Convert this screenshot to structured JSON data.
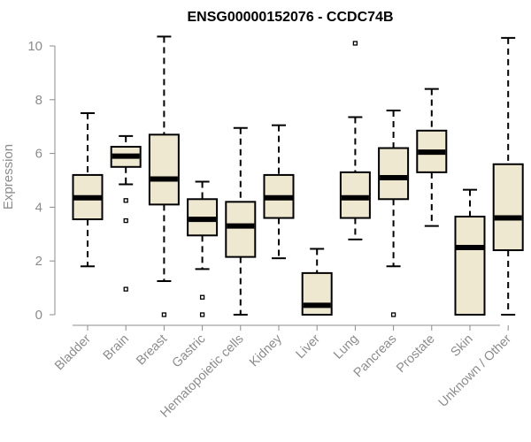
{
  "chart_data": {
    "type": "boxplot",
    "title": "ENSG00000152076 - CCDC74B",
    "xlabel": "",
    "ylabel": "Expression",
    "ylim": [
      0,
      10.3
    ],
    "yticks": [
      0,
      2,
      4,
      6,
      8,
      10
    ],
    "grid": false,
    "colors": {
      "box_fill": "#efe8d0",
      "box_stroke": "#000000",
      "axis": "#8c8c8c"
    },
    "categories": [
      "Bladder",
      "Brain",
      "Breast",
      "Gastric",
      "Hematopoietic cells",
      "Kidney",
      "Liver",
      "Lung",
      "Pancreas",
      "Prostate",
      "Skin",
      "Unknown / Other"
    ],
    "boxes": [
      {
        "category": "Bladder",
        "whisker_low": 1.8,
        "q1": 3.55,
        "median": 4.35,
        "q3": 5.2,
        "whisker_high": 7.5,
        "outliers": []
      },
      {
        "category": "Brain",
        "whisker_low": 4.85,
        "q1": 5.5,
        "median": 5.9,
        "q3": 6.25,
        "whisker_high": 6.65,
        "outliers": [
          4.25,
          3.5,
          0.95
        ]
      },
      {
        "category": "Breast",
        "whisker_low": 1.25,
        "q1": 4.1,
        "median": 5.05,
        "q3": 6.7,
        "whisker_high": 10.35,
        "outliers": [
          0.0
        ]
      },
      {
        "category": "Gastric",
        "whisker_low": 1.7,
        "q1": 2.95,
        "median": 3.55,
        "q3": 4.3,
        "whisker_high": 4.95,
        "outliers": [
          0.65,
          0.0
        ]
      },
      {
        "category": "Hematopoietic cells",
        "whisker_low": 0.0,
        "q1": 2.15,
        "median": 3.3,
        "q3": 4.2,
        "whisker_high": 6.95,
        "outliers": []
      },
      {
        "category": "Kidney",
        "whisker_low": 2.1,
        "q1": 3.6,
        "median": 4.35,
        "q3": 5.2,
        "whisker_high": 7.05,
        "outliers": []
      },
      {
        "category": "Liver",
        "whisker_low": 0.0,
        "q1": 0.0,
        "median": 0.35,
        "q3": 1.55,
        "whisker_high": 2.45,
        "outliers": []
      },
      {
        "category": "Lung",
        "whisker_low": 2.8,
        "q1": 3.6,
        "median": 4.35,
        "q3": 5.3,
        "whisker_high": 7.35,
        "outliers": [
          10.1
        ]
      },
      {
        "category": "Pancreas",
        "whisker_low": 1.8,
        "q1": 4.3,
        "median": 5.1,
        "q3": 6.2,
        "whisker_high": 7.6,
        "outliers": [
          0.0
        ]
      },
      {
        "category": "Prostate",
        "whisker_low": 3.3,
        "q1": 5.3,
        "median": 6.05,
        "q3": 6.85,
        "whisker_high": 8.4,
        "outliers": []
      },
      {
        "category": "Skin",
        "whisker_low": 0.0,
        "q1": 0.0,
        "median": 2.5,
        "q3": 3.65,
        "whisker_high": 4.65,
        "outliers": []
      },
      {
        "category": "Unknown / Other",
        "whisker_low": 0.0,
        "q1": 2.4,
        "median": 3.6,
        "q3": 5.6,
        "whisker_high": 10.3,
        "outliers": []
      }
    ]
  }
}
